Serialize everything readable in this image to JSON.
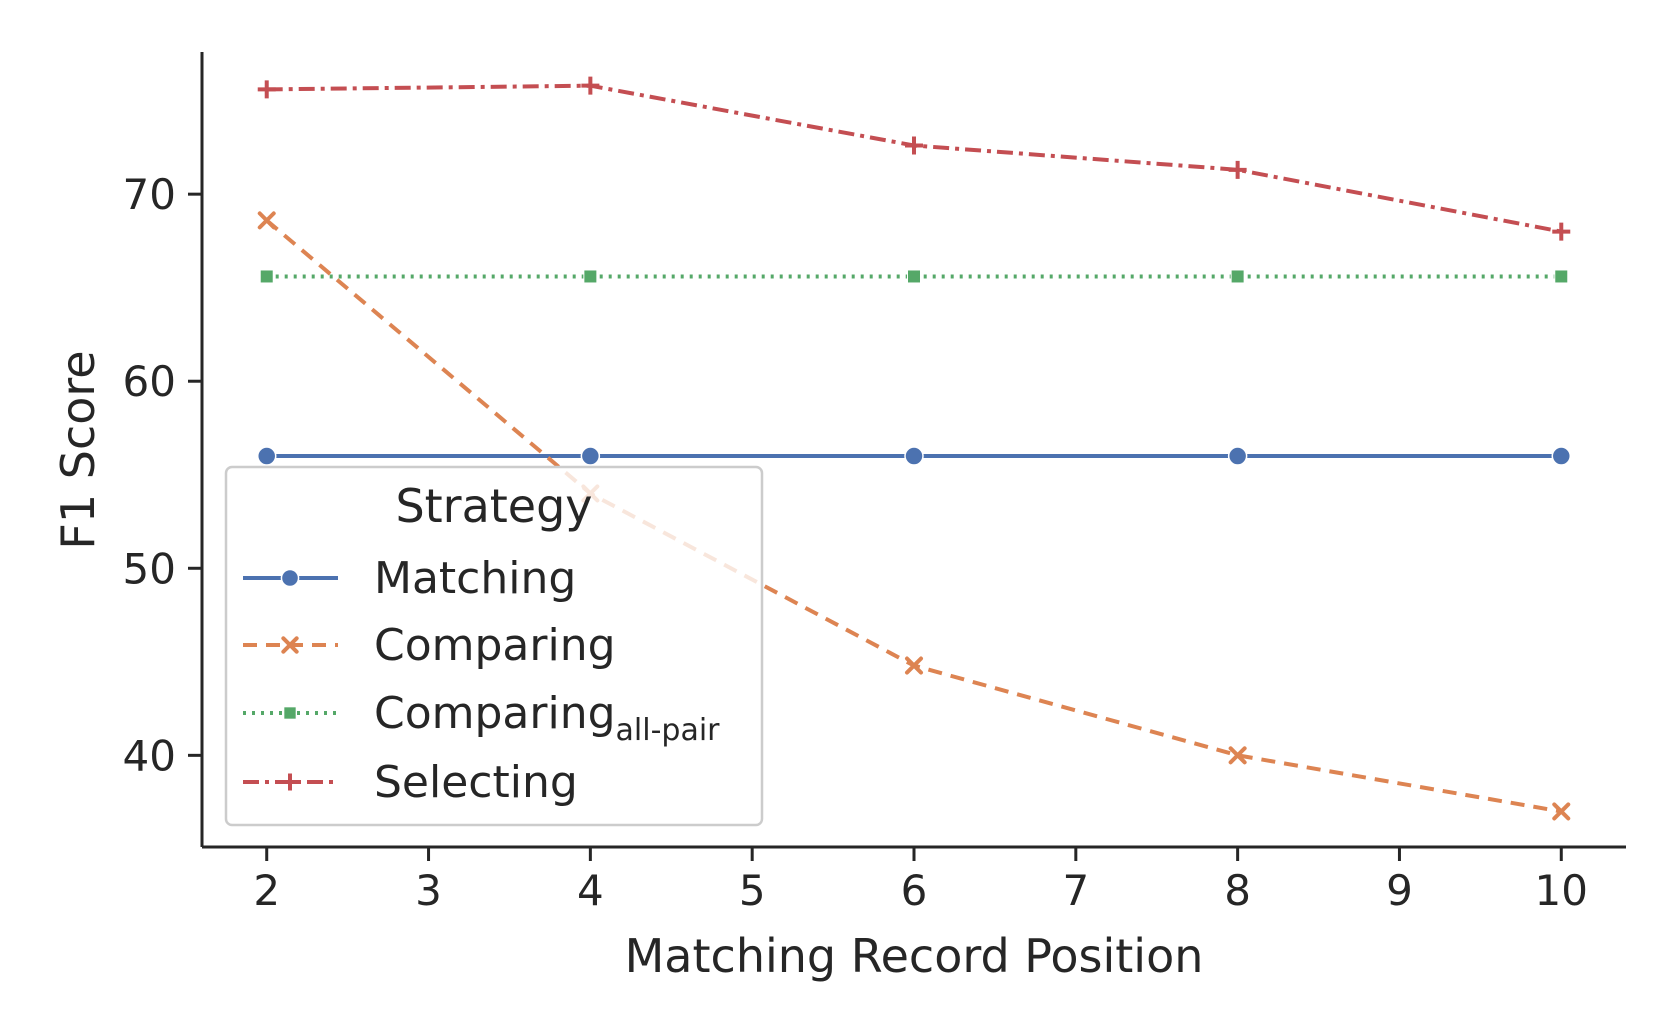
{
  "chart_data": {
    "type": "line",
    "xlabel": "Matching Record Position",
    "ylabel": "F1 Score",
    "xlim": [
      1.6,
      10.4
    ],
    "ylim": [
      35.1,
      77.6
    ],
    "xticks": [
      "2",
      "3",
      "4",
      "5",
      "6",
      "7",
      "8",
      "9",
      "10"
    ],
    "yticks": [
      "40",
      "50",
      "60",
      "70"
    ],
    "x": [
      2,
      4,
      6,
      8,
      10
    ],
    "series": [
      {
        "name": "Matching",
        "label_main": "Matching",
        "label_sub": "",
        "values": [
          56.0,
          56.0,
          56.0,
          56.0,
          56.0
        ],
        "color": "#4c72b0",
        "dash": "",
        "marker": "circle"
      },
      {
        "name": "Comparing",
        "label_main": "Comparing",
        "label_sub": "",
        "values": [
          68.6,
          54.0,
          44.8,
          40.0,
          37.0
        ],
        "color": "#dd8452",
        "dash": "14,9",
        "marker": "x"
      },
      {
        "name": "Comparing all-pair",
        "label_main": "Comparing",
        "label_sub": "all-pair",
        "values": [
          65.6,
          65.6,
          65.6,
          65.6,
          65.6
        ],
        "color": "#55a868",
        "dash": "3,6",
        "marker": "square"
      },
      {
        "name": "Selecting",
        "label_main": "Selecting",
        "label_sub": "",
        "values": [
          75.6,
          75.8,
          72.6,
          71.3,
          68.0
        ],
        "color": "#c44e52",
        "dash": "16,6,4,6",
        "marker": "plus"
      }
    ],
    "legend": {
      "title": "Strategy",
      "placement": "lower-left"
    },
    "grid": false
  }
}
